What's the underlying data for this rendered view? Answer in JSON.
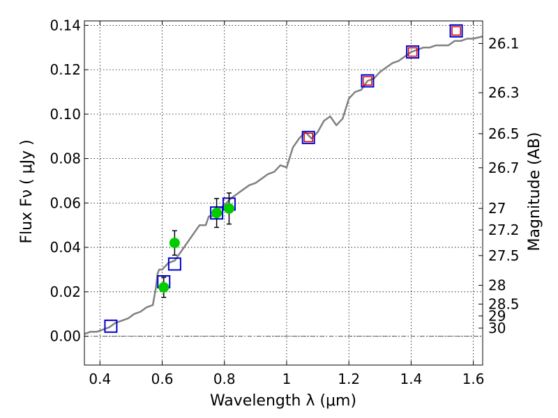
{
  "chart_data": {
    "type": "scatter",
    "xlabel": "Wavelength  λ (μm)",
    "ylabel": "Flux  Fν ( μJy )",
    "ylabel_right": "Magnitude (AB)",
    "xlim": [
      0.35,
      1.63
    ],
    "ylim": [
      -0.013,
      0.142
    ],
    "grid": true,
    "x_ticks": [
      0.4,
      0.6,
      0.8,
      1.0,
      1.2,
      1.4,
      1.6
    ],
    "x_tick_labels": [
      "0.4",
      "0.6",
      "0.8",
      "1",
      "1.2",
      "1.4",
      "1.6"
    ],
    "y_ticks": [
      0.0,
      0.02,
      0.04,
      0.06,
      0.08,
      0.1,
      0.12,
      0.14
    ],
    "y_tick_labels": [
      "0.00",
      "0.02",
      "0.04",
      "0.06",
      "0.08",
      "0.10",
      "0.12",
      "0.14"
    ],
    "mag_ticks": [
      26.1,
      26.3,
      26.5,
      26.7,
      27,
      27.2,
      27.5,
      28,
      28.5,
      29,
      30
    ],
    "mag_tick_labels": [
      "26.1",
      "26.3",
      "26.5",
      "26.7",
      "27",
      "27.2",
      "27.5",
      "28",
      "28.5",
      "29",
      "30"
    ],
    "colors": {
      "model": "#808080",
      "observed": "#00cc00",
      "model_photometry": "#0000cc",
      "redshifted_boxes": "#dd0000",
      "errorbar": "#000000",
      "zero_line": "#555555"
    },
    "series": [
      {
        "kind": "model_spectrum",
        "x": [
          0.35,
          0.37,
          0.39,
          0.41,
          0.43,
          0.45,
          0.47,
          0.49,
          0.51,
          0.53,
          0.55,
          0.57,
          0.58,
          0.585,
          0.59,
          0.6,
          0.62,
          0.64,
          0.66,
          0.68,
          0.7,
          0.72,
          0.74,
          0.75,
          0.76,
          0.78,
          0.8,
          0.82,
          0.84,
          0.86,
          0.88,
          0.9,
          0.92,
          0.94,
          0.96,
          0.98,
          1.0,
          1.02,
          1.04,
          1.06,
          1.08,
          1.1,
          1.12,
          1.14,
          1.16,
          1.18,
          1.2,
          1.22,
          1.24,
          1.26,
          1.28,
          1.3,
          1.32,
          1.34,
          1.36,
          1.38,
          1.4,
          1.42,
          1.44,
          1.46,
          1.48,
          1.5,
          1.52,
          1.54,
          1.56,
          1.58,
          1.6,
          1.63
        ],
        "y": [
          0.001,
          0.002,
          0.002,
          0.003,
          0.004,
          0.006,
          0.007,
          0.008,
          0.01,
          0.011,
          0.013,
          0.014,
          0.022,
          0.028,
          0.03,
          0.03,
          0.033,
          0.034,
          0.038,
          0.042,
          0.046,
          0.05,
          0.05,
          0.054,
          0.054,
          0.057,
          0.059,
          0.062,
          0.064,
          0.066,
          0.068,
          0.069,
          0.071,
          0.073,
          0.074,
          0.077,
          0.076,
          0.085,
          0.089,
          0.092,
          0.089,
          0.092,
          0.097,
          0.099,
          0.095,
          0.098,
          0.107,
          0.11,
          0.111,
          0.115,
          0.116,
          0.119,
          0.121,
          0.123,
          0.124,
          0.126,
          0.128,
          0.129,
          0.13,
          0.13,
          0.131,
          0.131,
          0.131,
          0.133,
          0.133,
          0.134,
          0.134,
          0.135
        ]
      },
      {
        "kind": "model_photometry_blue_boxes",
        "x": [
          0.435,
          0.605,
          0.64,
          0.775,
          0.815,
          1.07,
          1.26,
          1.405,
          1.545
        ],
        "y": [
          0.0045,
          0.0245,
          0.0325,
          0.0555,
          0.0595,
          0.0895,
          0.115,
          0.128,
          0.1375
        ]
      },
      {
        "kind": "red_boxes",
        "x": [
          1.07,
          1.26,
          1.405,
          1.545
        ],
        "y": [
          0.0895,
          0.115,
          0.128,
          0.1375
        ]
      },
      {
        "kind": "observed_points",
        "x": [
          0.605,
          0.64,
          0.775,
          0.815
        ],
        "y": [
          0.022,
          0.042,
          0.0555,
          0.0575
        ],
        "yerr": [
          0.0045,
          0.0055,
          0.0065,
          0.007
        ]
      }
    ]
  }
}
